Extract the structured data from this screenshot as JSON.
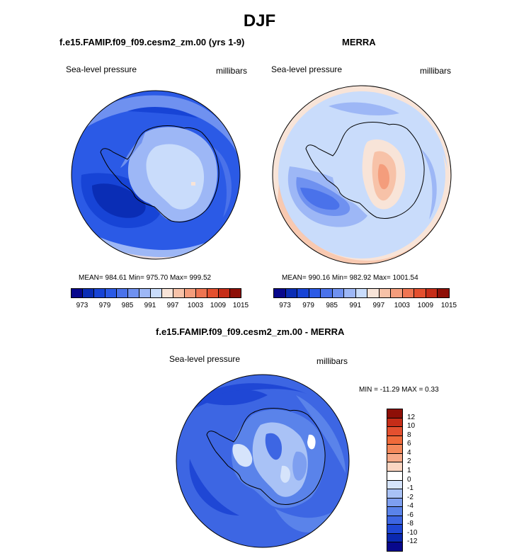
{
  "title": "DJF",
  "panels": [
    {
      "title": "f.e15.FAMIP.f09_f09.cesm2_zm.00 (yrs 1-9)",
      "left_label": "Sea-level pressure",
      "right_label": "millibars",
      "stats": "MEAN= 984.61  Min= 975.70  Max= 999.52"
    },
    {
      "title": "MERRA",
      "left_label": "Sea-level pressure",
      "right_label": "millibars",
      "stats": "MEAN= 990.16  Min= 982.92  Max= 1001.54"
    },
    {
      "title": "f.e15.FAMIP.f09_f09.cesm2_zm.00 - MERRA",
      "left_label": "Sea-level pressure",
      "right_label": "millibars",
      "stats": "MIN = -11.29 MAX =   0.33"
    }
  ],
  "colorbar_abs": {
    "colors": [
      "#08088c",
      "#0a2db5",
      "#1744d6",
      "#2b5ae6",
      "#4a72ea",
      "#6f91f0",
      "#9db7f6",
      "#c9dcfb",
      "#f8e4d8",
      "#f7c2a8",
      "#f49d7c",
      "#ef7552",
      "#e4502f",
      "#c62d18",
      "#8e0f07"
    ],
    "labels": [
      "973",
      "979",
      "985",
      "991",
      "997",
      "1003",
      "1009",
      "1015"
    ]
  },
  "colorbar_diff": {
    "colors": [
      "#8e0f07",
      "#c62d18",
      "#e4502f",
      "#f06a3a",
      "#f4885a",
      "#f7a988",
      "#fbd6c2",
      "#ffffff",
      "#d6e4fb",
      "#a9c2f6",
      "#7e9ff0",
      "#5a83ea",
      "#3d66e3",
      "#1f47d5",
      "#0a28b0",
      "#08088c"
    ],
    "labels": [
      "12",
      "10",
      "8",
      "6",
      "4",
      "2",
      "1",
      "0",
      "-1",
      "-2",
      "-4",
      "-6",
      "-8",
      "-10",
      "-12"
    ]
  }
}
